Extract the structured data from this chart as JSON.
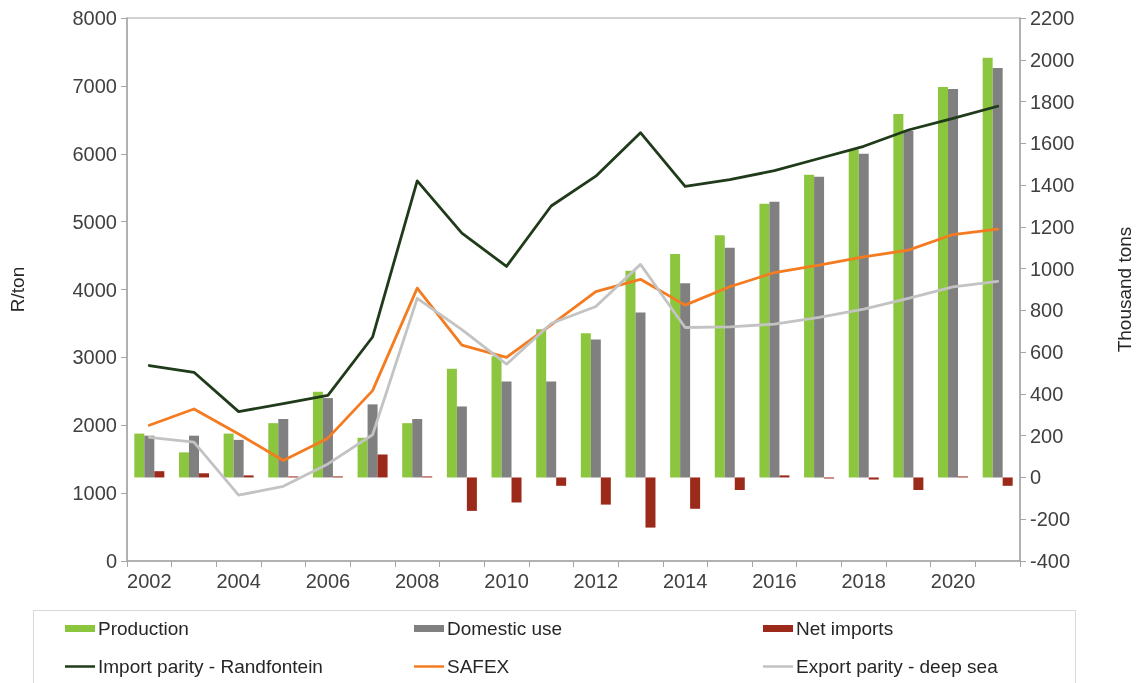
{
  "chart_data": {
    "type": "bar",
    "categories": [
      "2002",
      null,
      "2004",
      null,
      "2006",
      null,
      "2008",
      null,
      "2010",
      null,
      "2012",
      null,
      "2014",
      null,
      "2016",
      null,
      "2018",
      null,
      "2020",
      null
    ],
    "ylabel": "R/ton",
    "y2label": "Thousand tons",
    "ylim": [
      0,
      8000
    ],
    "yticks": [
      0,
      1000,
      2000,
      3000,
      4000,
      5000,
      6000,
      7000,
      8000
    ],
    "y2lim": [
      -400,
      2200
    ],
    "y2ticks": [
      -400,
      -200,
      0,
      200,
      400,
      600,
      800,
      1000,
      1200,
      1400,
      1600,
      1800,
      2000,
      2200
    ],
    "legend": "bottom",
    "series": [
      {
        "name": "Production",
        "type": "bar",
        "axis": "y2",
        "color": "#8cc63e",
        "values": [
          210,
          120,
          210,
          260,
          410,
          190,
          260,
          520,
          580,
          710,
          690,
          990,
          1070,
          1160,
          1310,
          1450,
          1570,
          1740,
          1870,
          2010
        ]
      },
      {
        "name": "Domestic use",
        "type": "bar",
        "axis": "y2",
        "color": "#808080",
        "values": [
          200,
          200,
          180,
          280,
          380,
          350,
          280,
          340,
          460,
          460,
          660,
          790,
          930,
          1100,
          1320,
          1440,
          1550,
          1660,
          1860,
          1960
        ]
      },
      {
        "name": "Net imports",
        "type": "bar",
        "axis": "y2",
        "color": "#9c2a1b",
        "values": [
          30,
          20,
          10,
          5,
          5,
          110,
          5,
          -160,
          -120,
          -40,
          -130,
          -240,
          -150,
          -60,
          10,
          -5,
          -10,
          -60,
          5,
          -40
        ]
      },
      {
        "name": "Import parity - Randfontein",
        "type": "line",
        "color": "#1f3b1a",
        "values": [
          2880,
          2780,
          2200,
          2320,
          2440,
          3300,
          5600,
          4830,
          4340,
          5230,
          5670,
          6310,
          5520,
          5620,
          5750,
          5930,
          6110,
          6350,
          6520,
          6700
        ]
      },
      {
        "name": "SAFEX",
        "type": "line",
        "color": "#f47b20",
        "values": [
          2000,
          2240,
          1870,
          1480,
          1810,
          2510,
          4020,
          3180,
          3000,
          3480,
          3970,
          4150,
          3770,
          4040,
          4250,
          4360,
          4480,
          4580,
          4810,
          4890
        ]
      },
      {
        "name": "Export parity - deep sea",
        "type": "line",
        "color": "#c3c3c3",
        "values": [
          1820,
          1750,
          970,
          1100,
          1430,
          1860,
          3870,
          3410,
          2900,
          3500,
          3750,
          4370,
          3440,
          3450,
          3490,
          3590,
          3710,
          3870,
          4040,
          4120
        ]
      }
    ]
  }
}
